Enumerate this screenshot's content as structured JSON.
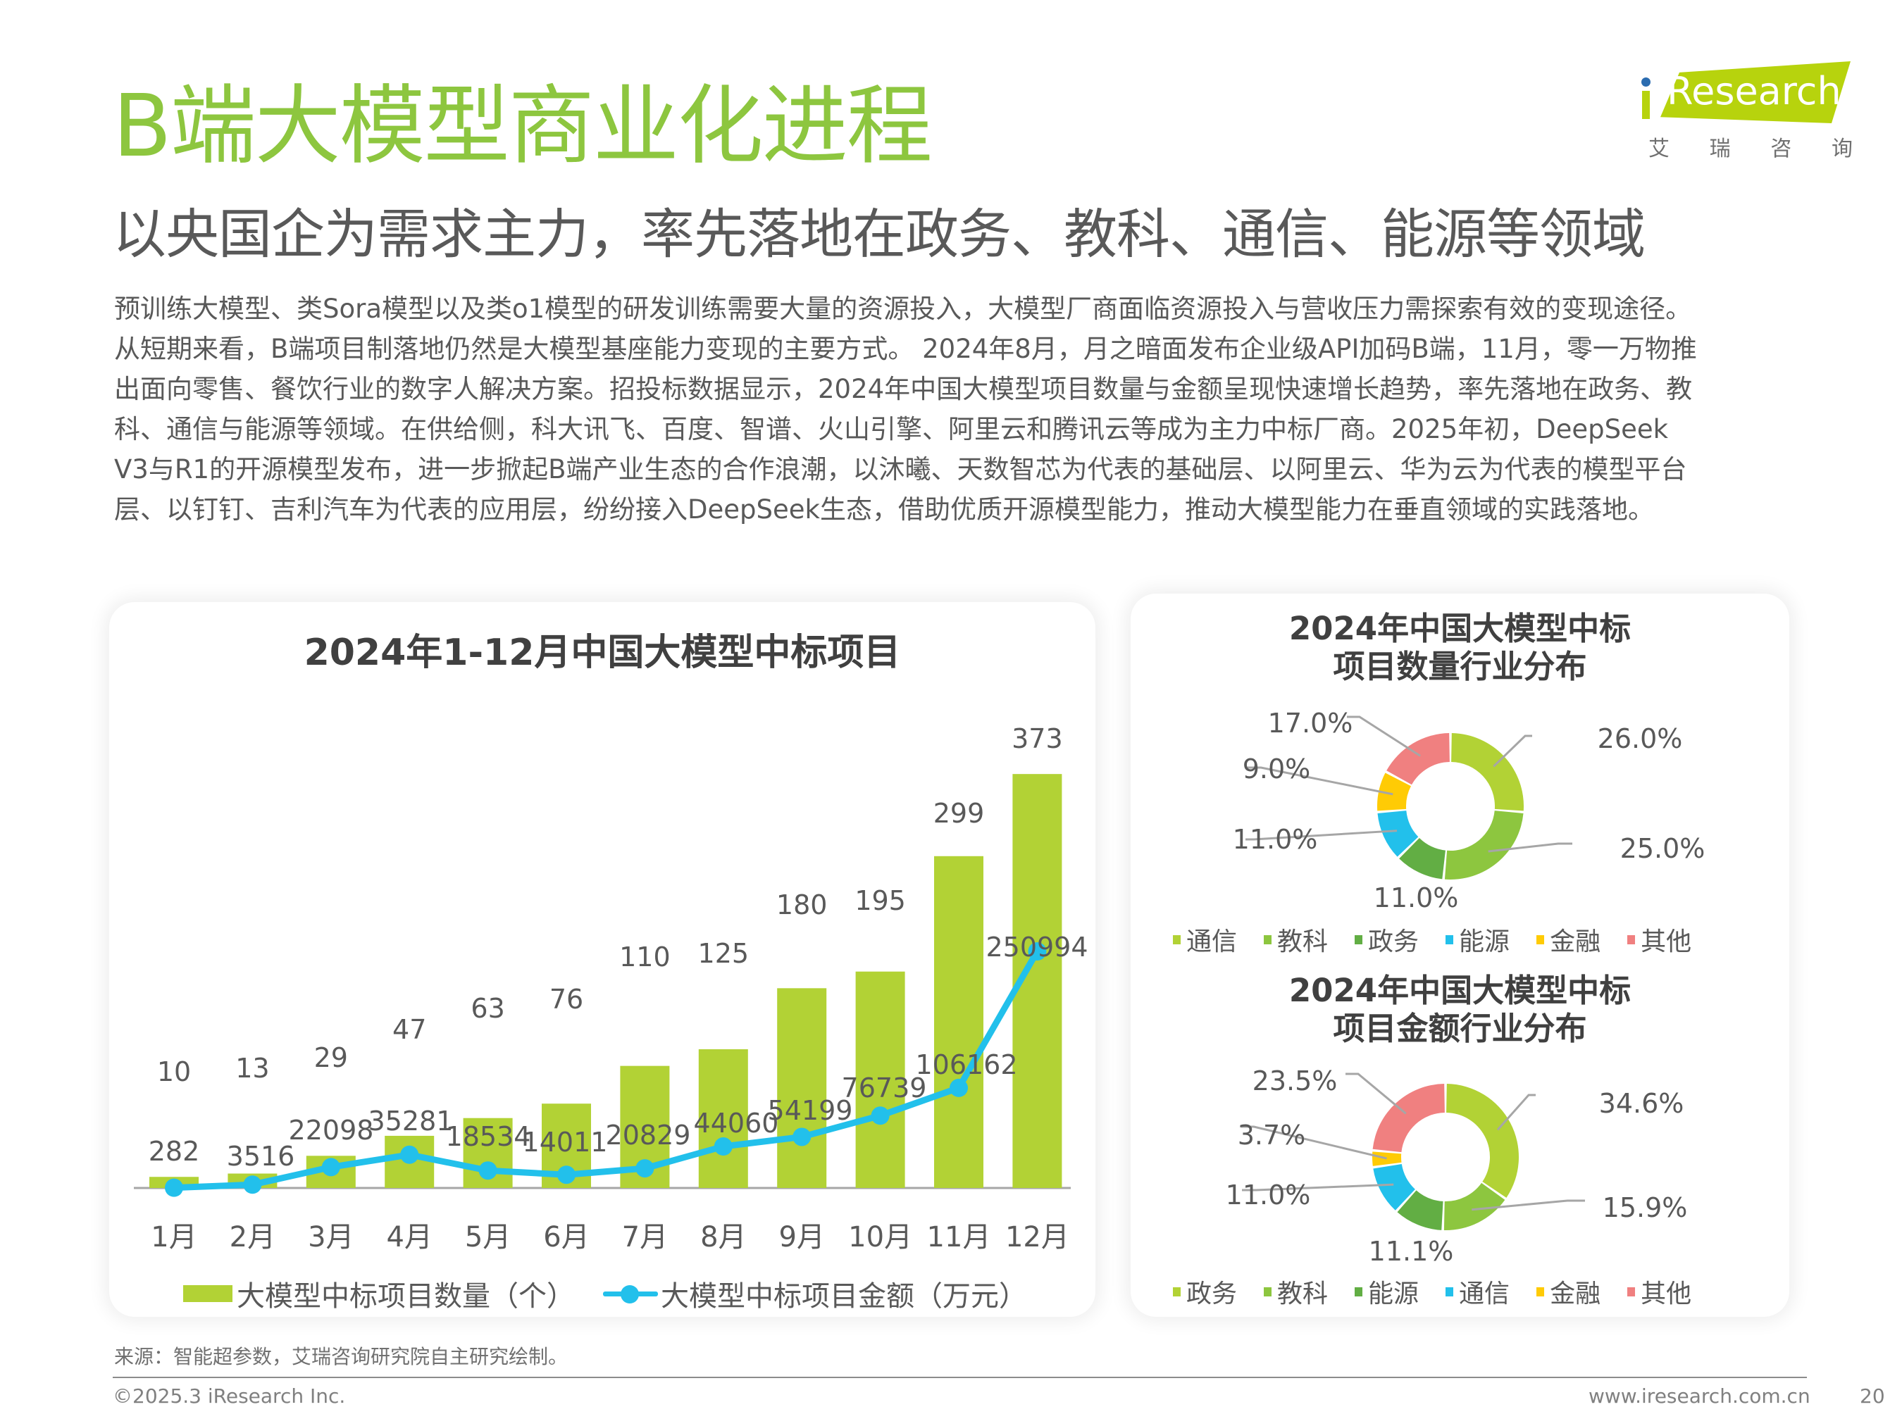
{
  "header": {
    "title": "B端大模型商业化进程",
    "subtitle": "以央国企为需求主力，率先落地在政务、教科、通信、能源等领域"
  },
  "logo": {
    "brand": "Research",
    "brand_prefix": "i",
    "chinese": [
      "艾",
      "瑞",
      "咨",
      "询"
    ]
  },
  "body_lines": [
    "预训练大模型、类Sora模型以及类o1模型的研发训练需要大量的资源投入，大模型厂商面临资源投入与营收压力需探索有效的变现途径。",
    "从短期来看，B端项目制落地仍然是大模型基座能力变现的主要方式。 2024年8月，月之暗面发布企业级API加码B端，11月，零一万物推",
    "出面向零售、餐饮行业的数字人解决方案。招投标数据显示，2024年中国大模型项目数量与金额呈现快速增长趋势，率先落地在政务、教",
    "科、通信与能源等领域。在供给侧，科大讯飞、百度、智谱、火山引擎、阿里云和腾讯云等成为主力中标厂商。2025年初，DeepSeek",
    "V3与R1的开源模型发布，进一步掀起B端产业生态的合作浪潮，以沐曦、天数智芯为代表的基础层、以阿里云、华为云为代表的模型平台",
    "层、以钉钉、吉利汽车为代表的应用层，纷纷接入DeepSeek生态，借助优质开源模型能力，推动大模型能力在垂直领域的实践落地。"
  ],
  "chart_data": [
    {
      "type": "bar",
      "title": "2024年1-12月中国大模型中标项目",
      "categories": [
        "1月",
        "2月",
        "3月",
        "4月",
        "5月",
        "6月",
        "7月",
        "8月",
        "9月",
        "10月",
        "11月",
        "12月"
      ],
      "series": [
        {
          "name": "大模型中标项目数量（个）",
          "type": "bar",
          "color": "#b2d235",
          "values": [
            10,
            13,
            29,
            47,
            63,
            76,
            110,
            125,
            180,
            195,
            299,
            373
          ]
        },
        {
          "name": "大模型中标项目金额（万元）",
          "type": "line",
          "color": "#22c0eb",
          "values": [
            282,
            3516,
            22098,
            35281,
            18534,
            14011,
            20829,
            44060,
            54199,
            76739,
            106162,
            250994
          ]
        }
      ],
      "legend": "bottom",
      "grid": false,
      "xlabel": "",
      "ylabel": ""
    },
    {
      "type": "pie",
      "title": "2024年中国大模型中标项目数量行业分布",
      "donut": true,
      "labels": [
        "通信",
        "教科",
        "政务",
        "能源",
        "金融",
        "其他"
      ],
      "values": [
        26.0,
        25.0,
        11.0,
        11.0,
        9.0,
        17.0
      ],
      "value_labels": [
        "26.0%",
        "25.0%",
        "11.0%",
        "11.0%",
        "9.0%",
        "17.0%"
      ],
      "colors": [
        "#b2d235",
        "#8dc63f",
        "#62ae44",
        "#22c0eb",
        "#ffcb05",
        "#f08080"
      ],
      "legend": "bottom"
    },
    {
      "type": "pie",
      "title": "2024年中国大模型中标项目金额行业分布",
      "donut": true,
      "labels": [
        "政务",
        "教科",
        "能源",
        "通信",
        "金融",
        "其他"
      ],
      "values": [
        34.6,
        15.9,
        11.1,
        11.0,
        3.7,
        23.5
      ],
      "value_labels": [
        "34.6%",
        "15.9%",
        "11.1%",
        "11.0%",
        "3.7%",
        "23.5%"
      ],
      "colors": [
        "#b2d235",
        "#8dc63f",
        "#62ae44",
        "#22c0eb",
        "#ffcb05",
        "#f08080"
      ],
      "legend": "bottom"
    }
  ],
  "bar_chart": {
    "title_line": "2024年1-12月中国大模型中标项目"
  },
  "donut1": {
    "title_line1": "2024年中国大模型中标",
    "title_line2": "项目数量行业分布"
  },
  "donut2": {
    "title_line1": "2024年中国大模型中标",
    "title_line2": "项目金额行业分布"
  },
  "footer": {
    "source": "来源：智能超参数，艾瑞咨询研究院自主研究绘制。",
    "copyright": "©2025.3 iResearch Inc.",
    "website": "www.iresearch.com.cn",
    "page_number": "20"
  }
}
